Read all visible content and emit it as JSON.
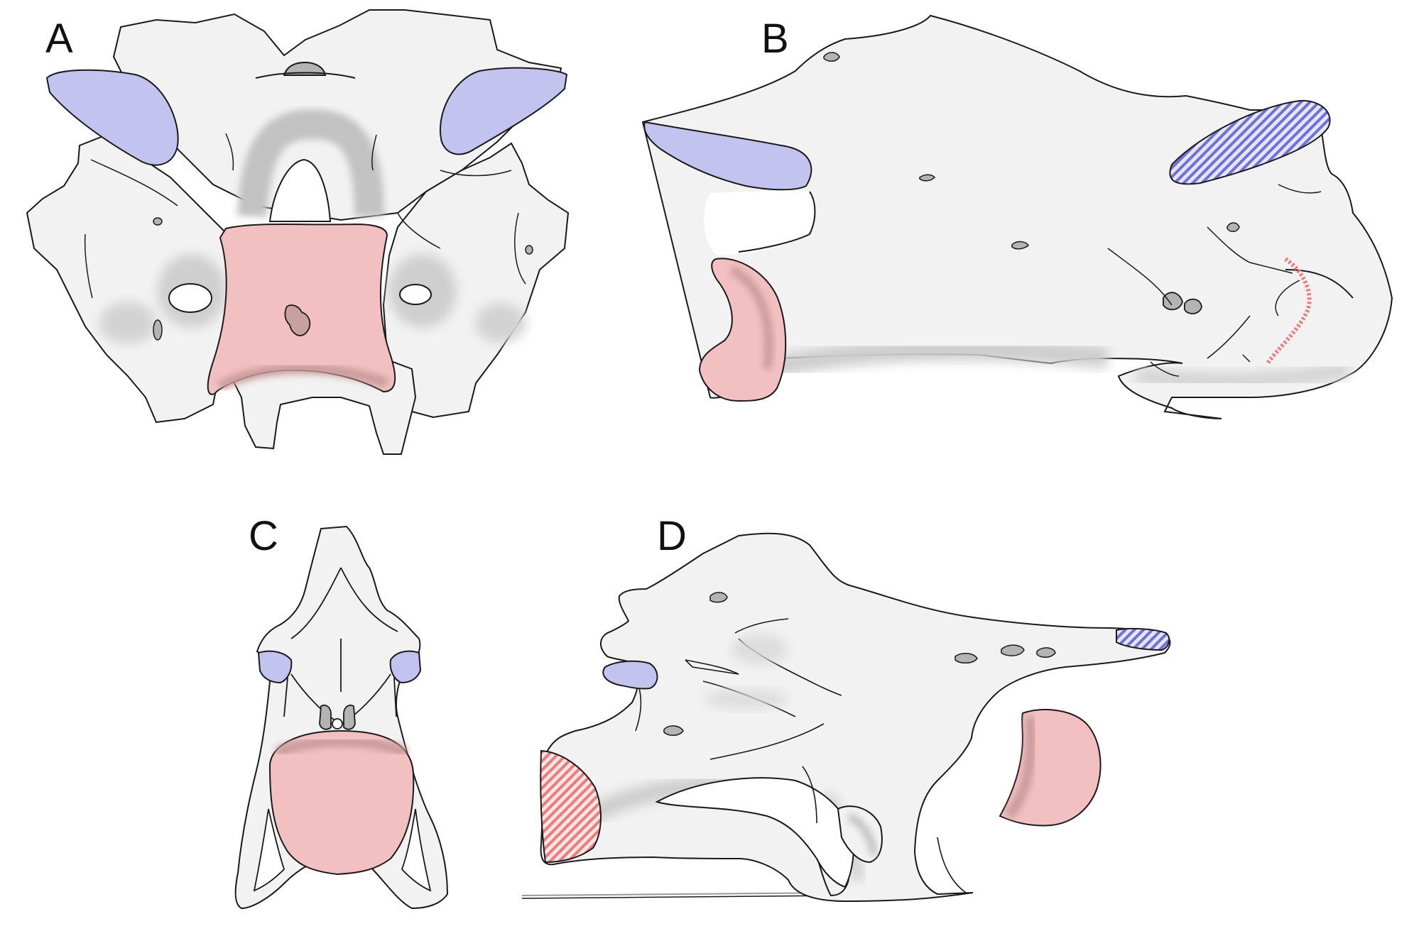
{
  "figure": {
    "panels": [
      {
        "id": "A",
        "label": "A"
      },
      {
        "id": "B",
        "label": "B"
      },
      {
        "id": "C",
        "label": "C"
      },
      {
        "id": "D",
        "label": "D"
      }
    ]
  },
  "colors": {
    "background": "#ffffff",
    "bone_fill": "#f2f2f2",
    "outline": "#1a1a1a",
    "shadow": "#c8c8c8",
    "foramen": "#b4b4b4",
    "blue_facet": "#c2c3ef",
    "blue_hatch": "#6f6fe0",
    "pink_centrum": "#f2c0c0",
    "red_hatch": "#f07a7a"
  }
}
